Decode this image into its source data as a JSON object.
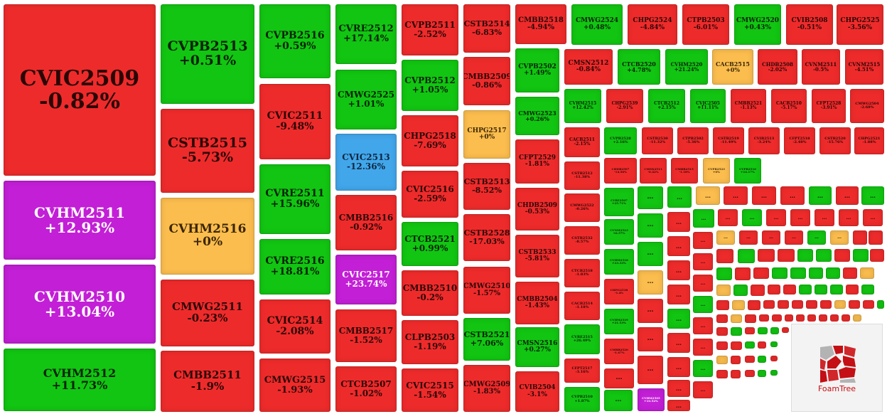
{
  "colors": {
    "down": "#ee2b2b",
    "up": "#12c512",
    "flat": "#fbbd4e",
    "ceiling": "#c21fd6",
    "floor": "#42a6ea"
  },
  "tiles": [
    {
      "ticker": "CVIC2509",
      "change": "-0.82%",
      "trend": "down"
    },
    {
      "ticker": "CVHM2511",
      "change": "+12.93%",
      "trend": "ceiling"
    },
    {
      "ticker": "CVHM2510",
      "change": "+13.04%",
      "trend": "ceiling"
    },
    {
      "ticker": "CVHM2512",
      "change": "+11.73%",
      "trend": "up"
    },
    {
      "ticker": "CVPB2513",
      "change": "+0.51%",
      "trend": "up"
    },
    {
      "ticker": "CSTB2515",
      "change": "-5.73%",
      "trend": "down"
    },
    {
      "ticker": "CVHM2516",
      "change": "+0%",
      "trend": "flat"
    },
    {
      "ticker": "CMWG2511",
      "change": "-0.23%",
      "trend": "down"
    },
    {
      "ticker": "CMBB2511",
      "change": "-1.9%",
      "trend": "down"
    },
    {
      "ticker": "CVPB2516",
      "change": "+0.59%",
      "trend": "up"
    },
    {
      "ticker": "CVIC2511",
      "change": "-9.48%",
      "trend": "down"
    },
    {
      "ticker": "CVRE2511",
      "change": "+15.96%",
      "trend": "up"
    },
    {
      "ticker": "CVRE2516",
      "change": "+18.81%",
      "trend": "up"
    },
    {
      "ticker": "CVIC2514",
      "change": "-2.08%",
      "trend": "down"
    },
    {
      "ticker": "CMWG2515",
      "change": "-1.93%",
      "trend": "down"
    },
    {
      "ticker": "CVRE2512",
      "change": "+17.14%",
      "trend": "up"
    },
    {
      "ticker": "CMWG2525",
      "change": "+1.01%",
      "trend": "up"
    },
    {
      "ticker": "CVIC2513",
      "change": "-12.36%",
      "trend": "floor"
    },
    {
      "ticker": "CMBB2516",
      "change": "-0.92%",
      "trend": "down"
    },
    {
      "ticker": "CVIC2517",
      "change": "+23.74%",
      "trend": "ceiling"
    },
    {
      "ticker": "CMBB2517",
      "change": "-1.52%",
      "trend": "down"
    },
    {
      "ticker": "CTCB2507",
      "change": "-1.02%",
      "trend": "down"
    },
    {
      "ticker": "CVPB2511",
      "change": "-2.52%",
      "trend": "down"
    },
    {
      "ticker": "CVPB2512",
      "change": "+1.05%",
      "trend": "up"
    },
    {
      "ticker": "CHPG2518",
      "change": "-7.69%",
      "trend": "down"
    },
    {
      "ticker": "CVIC2516",
      "change": "-2.59%",
      "trend": "down"
    },
    {
      "ticker": "CTCB2521",
      "change": "+0.99%",
      "trend": "up"
    },
    {
      "ticker": "CMBB2510",
      "change": "-0.2%",
      "trend": "down"
    },
    {
      "ticker": "CLPB2503",
      "change": "-1.19%",
      "trend": "down"
    },
    {
      "ticker": "CVIC2515",
      "change": "-1.54%",
      "trend": "down"
    },
    {
      "ticker": "CSTB2514",
      "change": "-6.83%",
      "trend": "down"
    },
    {
      "ticker": "CMBB2509",
      "change": "-0.86%",
      "trend": "down"
    },
    {
      "ticker": "CHPG2517",
      "change": "+0%",
      "trend": "flat"
    },
    {
      "ticker": "CSTB2513",
      "change": "-8.52%",
      "trend": "down"
    },
    {
      "ticker": "CSTB2528",
      "change": "-17.03%",
      "trend": "down"
    },
    {
      "ticker": "CMWG2510",
      "change": "-1.57%",
      "trend": "down"
    },
    {
      "ticker": "CSTB2521",
      "change": "+7.06%",
      "trend": "up"
    },
    {
      "ticker": "CMWG2509",
      "change": "-1.83%",
      "trend": "down"
    },
    {
      "ticker": "CMBB2518",
      "change": "-4.94%",
      "trend": "down"
    },
    {
      "ticker": "CVPB2502",
      "change": "+1.49%",
      "trend": "up"
    },
    {
      "ticker": "CMWG2523",
      "change": "+0.26%",
      "trend": "up"
    },
    {
      "ticker": "CFPT2529",
      "change": "-1.81%",
      "trend": "down"
    },
    {
      "ticker": "CHDB2509",
      "change": "-0.53%",
      "trend": "down"
    },
    {
      "ticker": "CSTB2533",
      "change": "-5.81%",
      "trend": "down"
    },
    {
      "ticker": "CMBB2504",
      "change": "-1.43%",
      "trend": "down"
    },
    {
      "ticker": "CMSN2516",
      "change": "+0.27%",
      "trend": "up"
    },
    {
      "ticker": "CVIB2504",
      "change": "-3.1%",
      "trend": "down"
    },
    {
      "ticker": "CMWG2524",
      "change": "+0.48%",
      "trend": "up"
    },
    {
      "ticker": "CHPG2524",
      "change": "-4.84%",
      "trend": "down"
    },
    {
      "ticker": "CTPB2503",
      "change": "-6.01%",
      "trend": "down"
    },
    {
      "ticker": "CMWG2520",
      "change": "+0.43%",
      "trend": "up"
    },
    {
      "ticker": "CVIB2508",
      "change": "-0.51%",
      "trend": "down"
    },
    {
      "ticker": "CHPG2525",
      "change": "-3.56%",
      "trend": "down"
    },
    {
      "ticker": "CMSN2512",
      "change": "-0.84%",
      "trend": "down"
    },
    {
      "ticker": "CTCB2520",
      "change": "+4.78%",
      "trend": "up"
    },
    {
      "ticker": "CVHM2520",
      "change": "+21.24%",
      "trend": "up"
    },
    {
      "ticker": "CACB2515",
      "change": "+0%",
      "trend": "flat"
    },
    {
      "ticker": "CHDB2508",
      "change": "-2.02%",
      "trend": "down"
    },
    {
      "ticker": "CVNM2511",
      "change": "-0.5%",
      "trend": "down"
    },
    {
      "ticker": "CVNM2515",
      "change": "-4.51%",
      "trend": "down"
    },
    {
      "ticker": "CVHM2515",
      "change": "+12.42%",
      "trend": "up"
    },
    {
      "ticker": "CHPG2539",
      "change": "-2.91%",
      "trend": "down"
    },
    {
      "ticker": "CTCB2512",
      "change": "+2.15%",
      "trend": "up"
    },
    {
      "ticker": "CVJC2505",
      "change": "+11.11%",
      "trend": "up"
    },
    {
      "ticker": "CMBB2521",
      "change": "-1.13%",
      "trend": "down"
    },
    {
      "ticker": "CACB2510",
      "change": "-5.17%",
      "trend": "down"
    },
    {
      "ticker": "CFPT2528",
      "change": "-3.91%",
      "trend": "down"
    },
    {
      "ticker": "CMWG2504",
      "change": "-2.68%",
      "trend": "down"
    },
    {
      "ticker": "CACB2511",
      "change": "-2.15%",
      "trend": "down"
    },
    {
      "ticker": "CVPB2528",
      "change": "+2.16%",
      "trend": "up"
    },
    {
      "ticker": "CSTB2530",
      "change": "-11.32%",
      "trend": "down"
    },
    {
      "ticker": "CTPB2502",
      "change": "-5.36%",
      "trend": "down"
    },
    {
      "ticker": "CSTB2519",
      "change": "-11.49%",
      "trend": "down"
    },
    {
      "ticker": "CVIB2513",
      "change": "-3.24%",
      "trend": "down"
    },
    {
      "ticker": "CFPT2518",
      "change": "-2.48%",
      "trend": "down"
    },
    {
      "ticker": "CSTB2520",
      "change": "-15.76%",
      "trend": "down"
    },
    {
      "ticker": "CHPG2521",
      "change": "-1.88%",
      "trend": "down"
    },
    {
      "ticker": "CSTB2512",
      "change": "-11.38%",
      "trend": "down"
    },
    {
      "ticker": "CHDB2507",
      "change": "-14.56%",
      "trend": "down"
    },
    {
      "ticker": "CMSN2511",
      "change": "-0.42%",
      "trend": "down"
    },
    {
      "ticker": "CMBB2515",
      "change": "-1.18%",
      "trend": "down"
    },
    {
      "ticker": "CVPB2523",
      "change": "+0%",
      "trend": "flat"
    },
    {
      "ticker": "CVPB2516",
      "change": "+14.17%",
      "trend": "up"
    },
    {
      "ticker": "CMWG2522",
      "change": "-0.26%",
      "trend": "down"
    },
    {
      "ticker": "CVRE2507",
      "change": "+25.71%",
      "trend": "up"
    },
    {
      "ticker": "CSTB2532",
      "change": "-8.57%",
      "trend": "down"
    },
    {
      "ticker": "CVNM2523",
      "change": "+6.57%",
      "trend": "up"
    },
    {
      "ticker": "CTCB2518",
      "change": "-1.83%",
      "trend": "down"
    },
    {
      "ticker": "CVHM2518",
      "change": "+23.33%",
      "trend": "up"
    },
    {
      "ticker": "CACB2514",
      "change": "-1.18%",
      "trend": "down"
    },
    {
      "ticker": "CHPG2538",
      "change": "-1.4%",
      "trend": "down"
    },
    {
      "ticker": "CVRE2515",
      "change": "+26.49%",
      "trend": "up"
    },
    {
      "ticker": "CVHM2519",
      "change": "+21.53%",
      "trend": "up"
    },
    {
      "ticker": "CFPT2517",
      "change": "-3.16%",
      "trend": "down"
    },
    {
      "ticker": "CMBB2520",
      "change": "-1.47%",
      "trend": "down"
    },
    {
      "ticker": "CVPB2510",
      "change": "+1.87%",
      "trend": "up"
    },
    {
      "ticker": "CVHM2505",
      "change": "+10.52%",
      "trend": "ceiling"
    },
    {
      "ticker": "CVIB2512",
      "change": "+0.86%",
      "trend": "up"
    }
  ],
  "small_tiles_text": "…",
  "small_tiles": [
    "up",
    "up",
    "flat",
    "down",
    "down",
    "down",
    "up",
    "down",
    "up",
    "down",
    "down",
    "up",
    "up",
    "up",
    "flat",
    "down",
    "down",
    "down",
    "down",
    "down",
    "down",
    "down",
    "up",
    "down",
    "up",
    "down",
    "down",
    "down",
    "down",
    "down",
    "down",
    "up",
    "down",
    "down",
    "up",
    "down",
    "down",
    "up",
    "down",
    "down",
    "down",
    "down",
    "down",
    "flat",
    "down",
    "down",
    "down",
    "up",
    "flat",
    "down",
    "down",
    "down",
    "up",
    "down",
    "down",
    "up",
    "up",
    "down",
    "up",
    "down",
    "up",
    "down",
    "down",
    "up",
    "up",
    "up",
    "up",
    "down",
    "flat",
    "flat",
    "up",
    "down",
    "down",
    "down",
    "up",
    "up",
    "up",
    "down",
    "up",
    "down",
    "flat",
    "down",
    "down",
    "down",
    "down",
    "down",
    "down",
    "flat",
    "down",
    "down",
    "up",
    "down",
    "flat",
    "down",
    "down",
    "down",
    "down",
    "down",
    "down",
    "down",
    "down",
    "down",
    "flat",
    "down",
    "up",
    "down",
    "up",
    "up",
    "down",
    "down",
    "down",
    "up",
    "down",
    "up",
    "flat",
    "down",
    "down",
    "up",
    "down",
    "down",
    "down",
    "down",
    "up",
    "up",
    "down",
    "up",
    "down",
    "up",
    "down",
    "down",
    "down",
    "down",
    "down"
  ],
  "logo": {
    "text": "FoamTree"
  }
}
